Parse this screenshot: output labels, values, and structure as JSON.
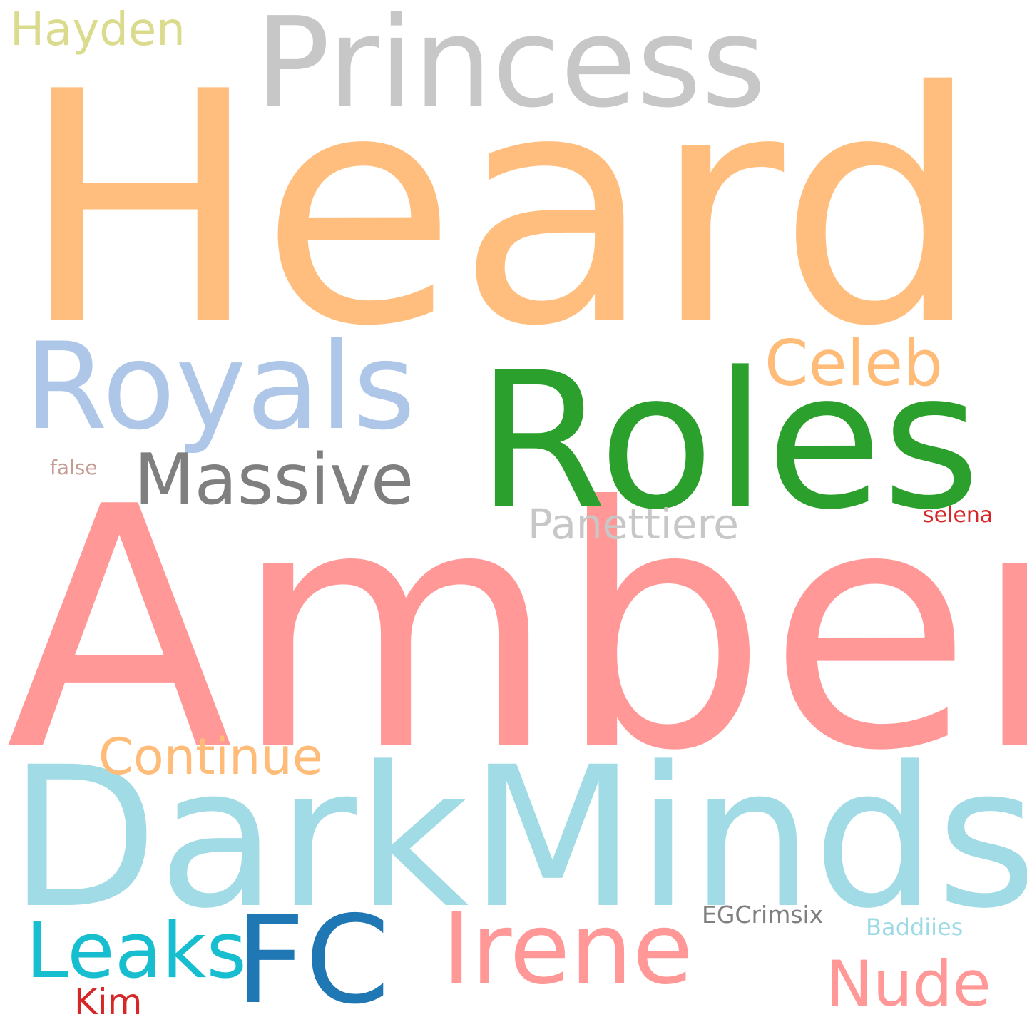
{
  "words": [
    {
      "text": "Amber",
      "color": "#ff9896"
    },
    {
      "text": "Heard",
      "color": "#ffbe7d"
    },
    {
      "text": "DarkMinds",
      "color": "#a1dbe5"
    },
    {
      "text": "Roles",
      "color": "#2ca02c"
    },
    {
      "text": "Princess",
      "color": "#c7c7c7"
    },
    {
      "text": "Royals",
      "color": "#aec7e8"
    },
    {
      "text": "FC",
      "color": "#1f77b4"
    },
    {
      "text": "Irene",
      "color": "#ff9896"
    },
    {
      "text": "Leaks",
      "color": "#17becf"
    },
    {
      "text": "Massive",
      "color": "#7f7f7f"
    },
    {
      "text": "Celeb",
      "color": "#ffbb78"
    },
    {
      "text": "Continue",
      "color": "#ffbb78"
    },
    {
      "text": "Nude",
      "color": "#ff9896"
    },
    {
      "text": "Hayden",
      "color": "#dbdb8d"
    },
    {
      "text": "Panettiere",
      "color": "#c7c7c7"
    },
    {
      "text": "Kim",
      "color": "#d62728"
    },
    {
      "text": "EGCrimsix",
      "color": "#7f7f7f"
    },
    {
      "text": "Baddiies",
      "color": "#9edae5"
    },
    {
      "text": "selena",
      "color": "#d62728"
    },
    {
      "text": "false",
      "color": "#c49c94"
    }
  ]
}
